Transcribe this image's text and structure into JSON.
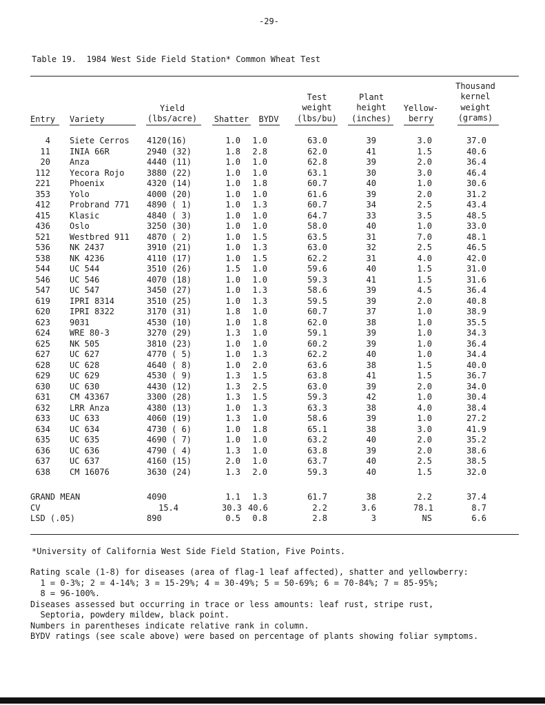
{
  "page_number": "-29-",
  "table_title": "Table 19.  1984 West Side Field Station* Common Wheat Test",
  "headers": {
    "entry": "Entry",
    "variety": "Variety",
    "yield": "Yield\n(lbs/acre)",
    "shatter": "Shatter",
    "bydv": "BYDV",
    "test_weight": "Test\nweight\n(lbs/bu)",
    "plant_height": "Plant\nheight\n(inches)",
    "yellowberry": "Yellow-\nberry",
    "thousand_kernel_weight": "Thousand\nkernel\nweight\n(grams)"
  },
  "rows": [
    [
      "4",
      "Siete Cerros",
      "4120(16)",
      "1.0",
      "1.0",
      "63.0",
      "39",
      "3.0",
      "37.0"
    ],
    [
      "11",
      "INIA 66R",
      "2940 (32)",
      "1.8",
      "2.8",
      "62.0",
      "41",
      "1.5",
      "40.6"
    ],
    [
      "20",
      "Anza",
      "4440 (11)",
      "1.0",
      "1.0",
      "62.8",
      "39",
      "2.0",
      "36.4"
    ],
    [
      "112",
      "Yecora Rojo",
      "3880 (22)",
      "1.0",
      "1.0",
      "63.1",
      "30",
      "3.0",
      "46.4"
    ],
    [
      "221",
      "Phoenix",
      "4320 (14)",
      "1.0",
      "1.8",
      "60.7",
      "40",
      "1.0",
      "30.6"
    ],
    [
      "353",
      "Yolo",
      "4000 (20)",
      "1.0",
      "1.0",
      "61.6",
      "39",
      "2.0",
      "31.2"
    ],
    [
      "412",
      "Probrand 771",
      "4890 ( 1)",
      "1.0",
      "1.3",
      "60.7",
      "34",
      "2.5",
      "43.4"
    ],
    [
      "415",
      "Klasic",
      "4840 ( 3)",
      "1.0",
      "1.0",
      "64.7",
      "33",
      "3.5",
      "48.5"
    ],
    [
      "436",
      "Oslo",
      "3250 (30)",
      "1.0",
      "1.0",
      "58.0",
      "40",
      "1.0",
      "33.0"
    ],
    [
      "521",
      "Westbred 911",
      "4870 ( 2)",
      "1.0",
      "1.5",
      "63.5",
      "31",
      "7.0",
      "48.1"
    ],
    [
      "536",
      "NK 2437",
      "3910 (21)",
      "1.0",
      "1.3",
      "63.0",
      "32",
      "2.5",
      "46.5"
    ],
    [
      "538",
      "NK 4236",
      "4110 (17)",
      "1.0",
      "1.5",
      "62.2",
      "31",
      "4.0",
      "42.0"
    ],
    [
      "544",
      "UC 544",
      "3510 (26)",
      "1.5",
      "1.0",
      "59.6",
      "40",
      "1.5",
      "31.0"
    ],
    [
      "546",
      "UC 546",
      "4070 (18)",
      "1.0",
      "1.0",
      "59.3",
      "41",
      "1.5",
      "31.6"
    ],
    [
      "547",
      "UC 547",
      "3450 (27)",
      "1.0",
      "1.3",
      "58.6",
      "39",
      "4.5",
      "36.4"
    ],
    [
      "619",
      "IPRI 8314",
      "3510 (25)",
      "1.0",
      "1.3",
      "59.5",
      "39",
      "2.0",
      "40.8"
    ],
    [
      "620",
      "IPRI 8322",
      "3170 (31)",
      "1.8",
      "1.0",
      "60.7",
      "37",
      "1.0",
      "38.9"
    ],
    [
      "623",
      "9031",
      "4530 (10)",
      "1.0",
      "1.8",
      "62.0",
      "38",
      "1.0",
      "35.5"
    ],
    [
      "624",
      "WRE 80-3",
      "3270 (29)",
      "1.3",
      "1.0",
      "59.1",
      "39",
      "1.0",
      "34.3"
    ],
    [
      "625",
      "NK 505",
      "3810 (23)",
      "1.0",
      "1.0",
      "60.2",
      "39",
      "1.0",
      "36.4"
    ],
    [
      "627",
      "UC 627",
      "4770 ( 5)",
      "1.0",
      "1.3",
      "62.2",
      "40",
      "1.0",
      "34.4"
    ],
    [
      "628",
      "UC 628",
      "4640 ( 8)",
      "1.0",
      "2.0",
      "63.6",
      "38",
      "1.5",
      "40.0"
    ],
    [
      "629",
      "UC 629",
      "4530 ( 9)",
      "1.3",
      "1.5",
      "63.8",
      "41",
      "1.5",
      "36.7"
    ],
    [
      "630",
      "UC 630",
      "4430 (12)",
      "1.3",
      "2.5",
      "63.0",
      "39",
      "2.0",
      "34.0"
    ],
    [
      "631",
      "CM 43367",
      "3300 (28)",
      "1.3",
      "1.5",
      "59.3",
      "42",
      "1.0",
      "30.4"
    ],
    [
      "632",
      "LRR Anza",
      "4380 (13)",
      "1.0",
      "1.3",
      "63.3",
      "38",
      "4.0",
      "38.4"
    ],
    [
      "633",
      "UC 633",
      "4060 (19)",
      "1.3",
      "1.0",
      "58.6",
      "39",
      "1.0",
      "27.2"
    ],
    [
      "634",
      "UC 634",
      "4730 ( 6)",
      "1.0",
      "1.8",
      "65.1",
      "38",
      "3.0",
      "41.9"
    ],
    [
      "635",
      "UC 635",
      "4690 ( 7)",
      "1.0",
      "1.0",
      "63.2",
      "40",
      "2.0",
      "35.2"
    ],
    [
      "636",
      "UC 636",
      "4790 ( 4)",
      "1.3",
      "1.0",
      "63.8",
      "39",
      "2.0",
      "38.6"
    ],
    [
      "637",
      "UC 637",
      "4160 (15)",
      "2.0",
      "1.0",
      "63.7",
      "40",
      "2.5",
      "38.5"
    ],
    [
      "638",
      "CM 16076",
      "3630 (24)",
      "1.3",
      "2.0",
      "59.3",
      "40",
      "1.5",
      "32.0"
    ]
  ],
  "summary": [
    [
      "GRAND MEAN",
      "4090",
      "1.1",
      "1.3",
      "61.7",
      "38",
      "2.2",
      "37.4"
    ],
    [
      "CV",
      "15.4",
      "30.3",
      "40.6",
      "2.2",
      "3.6",
      "78.1",
      "8.7"
    ],
    [
      "LSD (.05)",
      "890",
      "0.5",
      "0.8",
      "2.8",
      "3",
      "NS",
      "6.6"
    ]
  ],
  "footnote": "*University of California West Side Field Station, Five Points.",
  "notes": [
    "Rating scale (1-8) for diseases (area of flag-1 leaf affected), shatter and yellowberry:",
    "  1 = 0-3%; 2 = 4-14%; 3 = 15-29%; 4 = 30-49%; 5 = 50-69%; 6 = 70-84%; 7 = 85-95%;",
    "  8 = 96-100%.",
    "Diseases assessed but occurring in trace or less amounts: leaf rust, stripe rust,",
    "  Septoria, powdery mildew, black point.",
    "Numbers in parentheses indicate relative rank in column.",
    "BYDV ratings (see scale above) were based on percentage of plants showing foliar symptoms."
  ]
}
